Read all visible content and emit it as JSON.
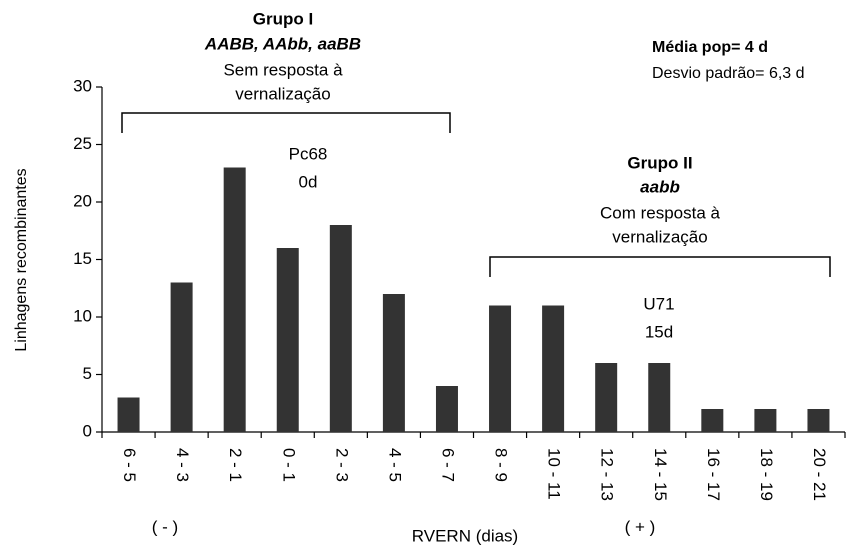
{
  "chart_data": {
    "type": "bar",
    "categories": [
      "6 - 5",
      "4 - 3",
      "2 - 1",
      "0 - 1",
      "2 - 3",
      "4 - 5",
      "6 - 7",
      "8 - 9",
      "10 - 11",
      "12 - 13",
      "14 - 15",
      "16 - 17",
      "18 - 19",
      "20 - 21"
    ],
    "values": [
      3,
      13,
      23,
      16,
      18,
      12,
      4,
      11,
      11,
      6,
      6,
      2,
      2,
      2
    ],
    "color": "#333333",
    "ylim": [
      0,
      30
    ],
    "yticks": [
      0,
      5,
      10,
      15,
      20,
      25,
      30
    ],
    "y_label": "Linhagens recombinantes",
    "x_label": "RVERN (dias)",
    "annotations": {
      "group1": [
        "Grupo I",
        "AABB, AAbb, aaBB",
        "Sem resposta à",
        "vernalização"
      ],
      "group2": [
        "Grupo II",
        "aabb",
        "Com resposta à",
        "vernalização"
      ],
      "stats": [
        "Média pop= 4 d",
        "Desvio padrão= 6,3 d"
      ],
      "pc68": [
        "Pc68",
        "0d"
      ],
      "u71": [
        "U71",
        "15d"
      ],
      "minus": "( - )",
      "plus": "( + )"
    }
  }
}
